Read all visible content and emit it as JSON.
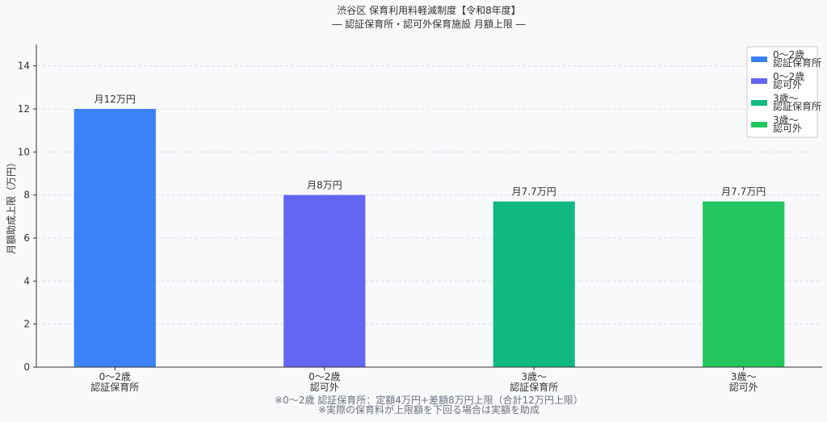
{
  "chart_data": {
    "type": "bar",
    "title": "渋谷区 保育利用料軽減制度【令和8年度】",
    "subtitle": "― 認証保育所・認可外保育施設 月額上限 ―",
    "y_label": "月額助成上限（万円）",
    "categories": [
      "0〜2歳\n認証保育所",
      "0〜2歳\n認可外",
      "3歳〜\n認証保育所",
      "3歳〜\n認可外"
    ],
    "values": [
      12,
      8,
      7.7,
      7.7
    ],
    "value_labels": [
      "月12万円",
      "月8万円",
      "月7.7万円",
      "月7.7万円"
    ],
    "colors": [
      "#3b82f6",
      "#6366f1",
      "#10b981",
      "#22c55e"
    ],
    "ylim": [
      0,
      15
    ],
    "yticks": [
      0,
      2,
      4,
      6,
      8,
      10,
      12,
      14
    ],
    "grid": true,
    "legend": "upper right",
    "notes": [
      "※0〜2歳 認証保育所：定額4万円+差額8万円上限（合計12万円上限）",
      "※実際の保育料が上限額を下回る場合は実額を助成"
    ]
  }
}
